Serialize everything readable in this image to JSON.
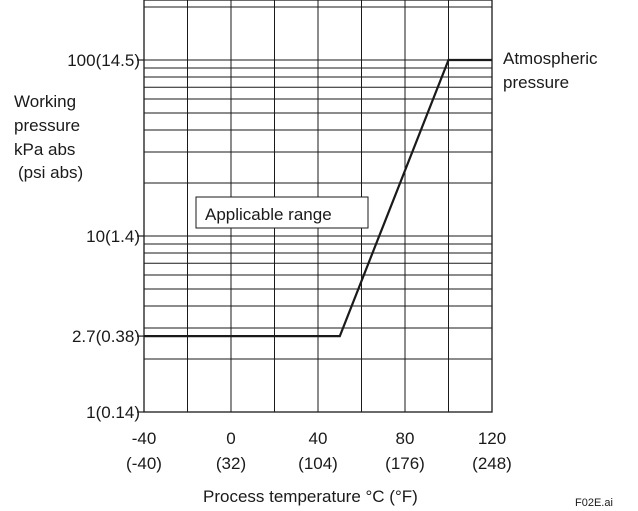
{
  "chart_data": {
    "type": "line",
    "x_scale": "linear",
    "y_scale": "log",
    "xlim": [
      -40,
      120
    ],
    "ylim": [
      1,
      100
    ],
    "grid": true,
    "x_ticks": [
      {
        "value": -40,
        "label": "-40",
        "sublabel": "(-40)"
      },
      {
        "value": 0,
        "label": "0",
        "sublabel": "(32)"
      },
      {
        "value": 40,
        "label": "40",
        "sublabel": "(104)"
      },
      {
        "value": 80,
        "label": "80",
        "sublabel": "(176)"
      },
      {
        "value": 120,
        "label": "120",
        "sublabel": "(248)"
      }
    ],
    "y_ticks": [
      {
        "value": 1,
        "label": "1(0.14)"
      },
      {
        "value": 2.7,
        "label": "2.7(0.38)"
      },
      {
        "value": 10,
        "label": "10(1.4)"
      },
      {
        "value": 100,
        "label": "100(14.5)"
      }
    ],
    "ylabel_lines": [
      "Working",
      "pressure",
      "kPa abs",
      "(psi abs)"
    ],
    "xlabel": "Process temperature °C (°F)",
    "series": [
      {
        "x": [
          -40,
          50,
          100,
          120
        ],
        "y": [
          2.7,
          2.7,
          100,
          100
        ]
      }
    ],
    "annotations": {
      "region_label": "Applicable range",
      "atmospheric_line1": "Atmospheric",
      "atmospheric_line2": "pressure"
    },
    "figure_id": "F02E.ai",
    "colors": {
      "line": "#1a1a1a",
      "grid": "#1a1a1a"
    }
  }
}
